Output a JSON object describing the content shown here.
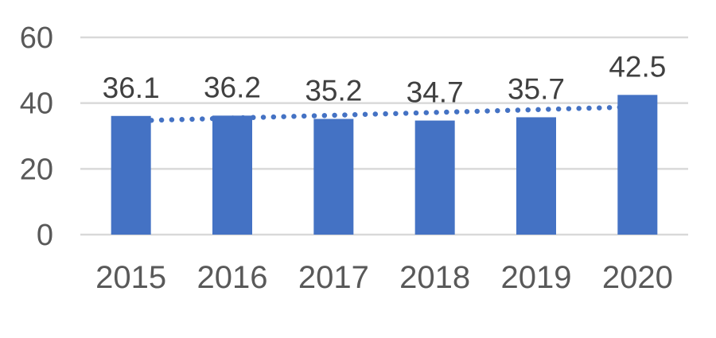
{
  "chart_data": {
    "type": "bar",
    "title": "",
    "xlabel": "",
    "ylabel": "",
    "categories": [
      "2015",
      "2016",
      "2017",
      "2018",
      "2019",
      "2020"
    ],
    "values": [
      36.1,
      36.2,
      35.2,
      34.7,
      35.7,
      42.5
    ],
    "data_labels": [
      "36.1",
      "36.2",
      "35.2",
      "34.7",
      "35.7",
      "42.5"
    ],
    "ylim": [
      0,
      60
    ],
    "yticks": [
      0,
      20,
      40,
      60
    ],
    "ytick_labels": [
      "0",
      "20",
      "40",
      "60"
    ],
    "grid": true,
    "legend": false,
    "trendline": {
      "type": "linear",
      "style": "dotted"
    },
    "colors": {
      "bar": "#4472C4",
      "trendline": "#4472C4",
      "gridline": "#D9D9D9",
      "axis_label": "#595959",
      "data_label": "#404040",
      "background": "#FFFFFF"
    }
  }
}
